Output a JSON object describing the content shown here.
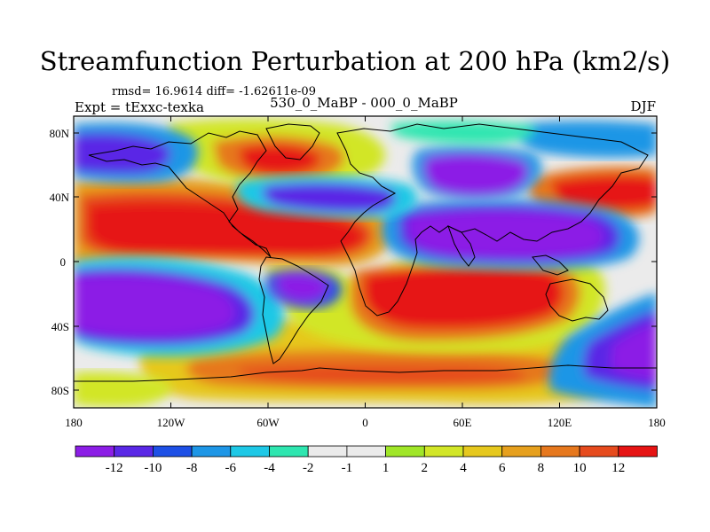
{
  "title": "Streamfunction Perturbation at 200 hPa (km2/s)",
  "stats": "rmsd= 16.9614 diff= -1.62611e-09",
  "experiment": "Expt = tExxc-texka",
  "runs": "530_0_MaBP - 000_0_MaBP",
  "season": "DJF",
  "colors": {
    "c1": "#8c1ee6",
    "c2": "#5a28e6",
    "c3": "#1e50e6",
    "c4": "#1e96e6",
    "c5": "#1ec8e6",
    "c6": "#2ee6b0",
    "c7": "#ebebeb",
    "c8": "#a0e628",
    "c9": "#d2e628",
    "c10": "#e6c81e",
    "c11": "#e6a01e",
    "c12": "#e6781e",
    "c13": "#e64b1e",
    "c14": "#e61414"
  },
  "map": {
    "y_ticks": [
      "80N",
      "40N",
      "0",
      "40S",
      "80S"
    ],
    "x_ticks": [
      "180",
      "120W",
      "60W",
      "0",
      "60E",
      "120E",
      "180"
    ]
  },
  "colorbar": {
    "labels": [
      "-12",
      "-10",
      "-8",
      "-6",
      "-4",
      "-2",
      "-1",
      "1",
      "2",
      "4",
      "6",
      "8",
      "10",
      "12"
    ]
  }
}
